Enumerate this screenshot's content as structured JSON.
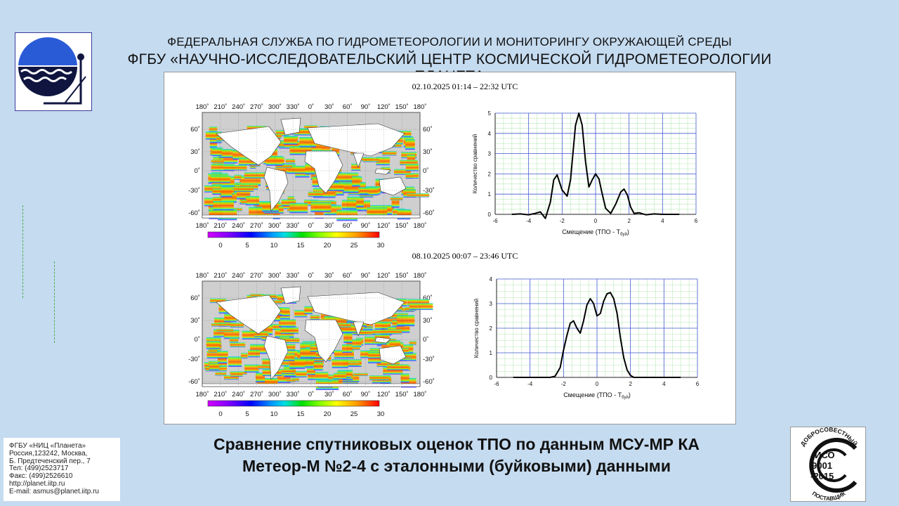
{
  "header": {
    "line1": "ФЕДЕРАЛЬНАЯ СЛУЖБА ПО ГИДРОМЕТЕОРОЛОГИИ И МОНИТОРИНГУ ОКРУЖАЮЩЕЙ СРЕДЫ",
    "line2": "ФГБУ «НАУЧНО-ИССЛЕДОВАТЕЛЬСКИЙ ЦЕНТР КОСМИЧЕСКОЙ ГИДРОМЕТЕОРОЛОГИИ «ПЛАНЕТА»"
  },
  "maps": {
    "lon_labels": [
      "180˚",
      "210˚",
      "240˚",
      "270˚",
      "300˚",
      "330˚",
      "0˚",
      "30˚",
      "60˚",
      "90˚",
      "120˚",
      "150˚",
      "180˚"
    ],
    "lat_labels": [
      "60˚",
      "30˚",
      "0˚",
      "-30˚",
      "-60˚"
    ],
    "colorbar_ticks": [
      "0",
      "5",
      "10",
      "15",
      "20",
      "25",
      "30"
    ]
  },
  "panels": [
    {
      "period": "02.10.2025  01:14 – 22:32 UTC"
    },
    {
      "period": "08.10.2025  00:07 – 23:46 UTC"
    }
  ],
  "chart_data": [
    {
      "type": "line",
      "xlabel": "Смещение (ТПО - Т",
      "xlabel_sub": "буй",
      "ylabel": "Количество сравнений",
      "xlim": [
        -6,
        6
      ],
      "ylim": [
        0,
        5
      ],
      "x_ticks": [
        -6,
        -4,
        -2,
        0,
        2,
        4,
        6
      ],
      "y_ticks": [
        0,
        1,
        2,
        3,
        4,
        5
      ],
      "x": [
        -5,
        -4.5,
        -4,
        -3.6,
        -3.3,
        -3,
        -2.7,
        -2.5,
        -2.3,
        -2,
        -1.7,
        -1.5,
        -1.2,
        -1,
        -0.8,
        -0.6,
        -0.4,
        -0.2,
        0,
        0.2,
        0.4,
        0.6,
        0.9,
        1.2,
        1.5,
        1.7,
        1.9,
        2.1,
        2.3,
        2.6,
        3,
        3.5,
        4,
        4.5,
        5
      ],
      "y": [
        0,
        0.02,
        -0.02,
        0.05,
        0.12,
        -0.2,
        0.6,
        1.7,
        1.95,
        1.2,
        0.9,
        1.7,
        4.4,
        5,
        4.4,
        2.6,
        1.35,
        1.7,
        2,
        1.75,
        1.0,
        0.3,
        0.05,
        0.5,
        1.1,
        1.25,
        0.95,
        0.35,
        0.05,
        0.08,
        -0.02,
        0.02,
        0,
        0,
        0
      ]
    },
    {
      "type": "line",
      "xlabel": "Смещение (ТПО - Т",
      "xlabel_sub": "буй",
      "ylabel": "Количество сравнений",
      "xlim": [
        -6,
        6
      ],
      "ylim": [
        0,
        4
      ],
      "x_ticks": [
        -6,
        -4,
        -2,
        0,
        2,
        4,
        6
      ],
      "y_ticks": [
        0,
        1,
        2,
        3,
        4
      ],
      "x": [
        -5,
        -3.5,
        -2.8,
        -2.5,
        -2.2,
        -2,
        -1.8,
        -1.6,
        -1.4,
        -1.2,
        -1,
        -0.8,
        -0.6,
        -0.4,
        -0.2,
        0,
        0.2,
        0.4,
        0.6,
        0.8,
        1,
        1.2,
        1.4,
        1.6,
        1.8,
        2,
        2.2,
        2.6,
        3.5,
        5
      ],
      "y": [
        0,
        0,
        0,
        0.05,
        0.4,
        1.1,
        1.7,
        2.2,
        2.3,
        2.0,
        1.8,
        2.3,
        2.95,
        3.2,
        3.0,
        2.5,
        2.6,
        3.1,
        3.4,
        3.45,
        3.2,
        2.6,
        1.6,
        0.8,
        0.3,
        0.08,
        0,
        0,
        0,
        0
      ]
    }
  ],
  "contact": {
    "lines": [
      "ФГБУ «НИЦ «Планета»",
      "Россия,123242, Москва,",
      "Б. Предтеченский пер., 7",
      "Тел:   (499)2523717",
      "Факс: (499)2526610",
      "http://planet.iitp.ru",
      "E-mail: asmus@planet.iitp.ru"
    ]
  },
  "caption": {
    "line1": "Сравнение спутниковых оценок ТПО по данным МСУ-МР КА",
    "line2": "Метеор-М №2-4 с эталонными (буйковыми) данными"
  },
  "iso_badge": {
    "top": "ДОБРОСОВЕСТНЫЙ",
    "code": "ИСО",
    "number": "9001",
    "year": "-2015",
    "bottom": "ПОСТАВЩИК"
  }
}
